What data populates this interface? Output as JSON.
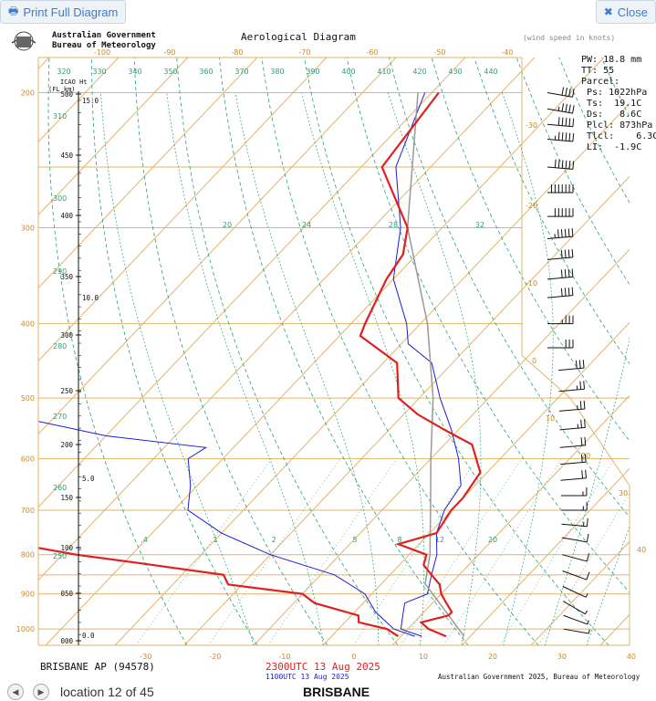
{
  "toolbar": {
    "print_label": "Print Full Diagram",
    "close_label": "Close",
    "print_icon": "printer-icon",
    "close_icon": "close-icon"
  },
  "header": {
    "agency_line1": "Australian Government",
    "agency_line2": "Bureau of Meteorology",
    "title": "Aerological Diagram",
    "wind_note": "(wind speed in knots)"
  },
  "parcel": {
    "pw": "PW: 18.8 mm",
    "tt": "TT:  55",
    "heading": "Parcel:",
    "ps": " Ps: 1022hPa",
    "ts": " Ts:  19.1C",
    "ds": " Ds:   8.6C",
    "plcl": " Plcl: 873hPa",
    "tlcl": " Tlcl:    6.3C",
    "li": " LI:  -1.9C"
  },
  "footer": {
    "station": "BRISBANE AP (94578)",
    "time_primary": "2300UTC 13 Aug 2025",
    "time_secondary": "1100UTC 13 Aug 2025",
    "credit": "Australian Government 2025, Bureau of Meteorology"
  },
  "nav": {
    "location": "location 12 of 45",
    "station": "BRISBANE"
  },
  "chart_data": {
    "type": "line",
    "title": "Aerological Diagram",
    "pressure_labels": [
      200,
      300,
      400,
      500,
      600,
      700,
      800,
      900,
      1000
    ],
    "temp_bottom_labels": [
      -30,
      -20,
      -10,
      0,
      10,
      20,
      30,
      40
    ],
    "temp_top_labels": [
      -100,
      -90,
      -80,
      -70,
      -60,
      -50,
      -40
    ],
    "theta_labels_top": [
      320,
      330,
      340,
      350,
      360,
      370,
      380,
      390,
      400,
      410,
      420,
      430,
      440
    ],
    "theta_labels_left": [
      310,
      300,
      290,
      280,
      270,
      260,
      250
    ],
    "right_temp_labels": [
      -30,
      -20,
      -10,
      0,
      10,
      20,
      30,
      40
    ],
    "mixing_ratio_upper": [
      20,
      24,
      28,
      32
    ],
    "mixing_ratio_lower": [
      0.4,
      1,
      2,
      5,
      8,
      12,
      20
    ],
    "icao_height_title": "ICAO Ht",
    "icao_height_units": "(FL  km)",
    "icao_fl_labels": [
      500,
      450,
      400,
      350,
      300,
      250,
      200,
      150,
      100,
      50,
      0
    ],
    "icao_km_labels": [
      "15.0",
      "10.0",
      "5.0",
      "0.0"
    ],
    "series": [
      {
        "name": "2300UTC 13 Aug 2025",
        "color": "#e0201f",
        "temperature": [
          [
            1022,
            16.5
          ],
          [
            1000,
            13
          ],
          [
            980,
            11
          ],
          [
            960,
            14
          ],
          [
            950,
            14
          ],
          [
            925,
            12
          ],
          [
            900,
            10
          ],
          [
            875,
            8.5
          ],
          [
            850,
            6
          ],
          [
            825,
            3.5
          ],
          [
            800,
            2.5
          ],
          [
            775,
            -3
          ],
          [
            750,
            1
          ],
          [
            700,
            0
          ],
          [
            675,
            0
          ],
          [
            625,
            -1
          ],
          [
            575,
            -6
          ],
          [
            550,
            -12
          ],
          [
            525,
            -18
          ],
          [
            500,
            -23
          ],
          [
            450,
            -28
          ],
          [
            415,
            -37
          ],
          [
            400,
            -38
          ],
          [
            350,
            -41
          ],
          [
            325,
            -42
          ],
          [
            300,
            -45
          ],
          [
            250,
            -57
          ],
          [
            200,
            -59
          ]
        ],
        "dewpoint": [
          [
            1022,
            9.6
          ],
          [
            1000,
            7
          ],
          [
            980,
            2
          ],
          [
            960,
            1
          ],
          [
            925,
            -7
          ],
          [
            900,
            -10
          ],
          [
            875,
            -22
          ],
          [
            850,
            -24
          ],
          [
            820,
            -38
          ],
          [
            800,
            -48
          ],
          [
            770,
            -60
          ],
          [
            750,
            -68
          ],
          [
            700,
            -75
          ],
          [
            650,
            -82
          ],
          [
            600,
            -88
          ],
          [
            575,
            -86
          ],
          [
            550,
            -91
          ],
          [
            500,
            -96
          ],
          [
            475,
            -98
          ],
          [
            450,
            -105
          ],
          [
            420,
            -122
          ],
          [
            400,
            -125
          ],
          [
            350,
            -134
          ],
          [
            325,
            -152
          ],
          [
            300,
            -140
          ],
          [
            200,
            -145
          ]
        ]
      },
      {
        "name": "1100UTC 13 Aug 2025",
        "color": "#1c1cd4",
        "temperature": [
          [
            1022,
            13
          ],
          [
            1000,
            9
          ],
          [
            950,
            7
          ],
          [
            925,
            6
          ],
          [
            900,
            8
          ],
          [
            850,
            6
          ],
          [
            800,
            4
          ],
          [
            750,
            1
          ],
          [
            700,
            -1
          ],
          [
            650,
            -2
          ],
          [
            600,
            -6
          ],
          [
            550,
            -11
          ],
          [
            500,
            -17
          ],
          [
            450,
            -23
          ],
          [
            425,
            -29
          ],
          [
            400,
            -32
          ],
          [
            350,
            -40
          ],
          [
            300,
            -46
          ],
          [
            250,
            -55
          ],
          [
            200,
            -61
          ]
        ],
        "dewpoint": [
          [
            1022,
            12
          ],
          [
            1000,
            8
          ],
          [
            950,
            3
          ],
          [
            900,
            -1
          ],
          [
            850,
            -8
          ],
          [
            800,
            -20
          ],
          [
            750,
            -30
          ],
          [
            700,
            -38
          ],
          [
            650,
            -41
          ],
          [
            600,
            -45
          ],
          [
            580,
            -44
          ],
          [
            560,
            -60
          ],
          [
            520,
            -80
          ],
          [
            480,
            -78
          ],
          [
            460,
            -85
          ],
          [
            440,
            -92
          ],
          [
            400,
            -110
          ],
          [
            350,
            -112
          ],
          [
            300,
            -112
          ],
          [
            250,
            -115
          ],
          [
            200,
            -122
          ]
        ]
      }
    ],
    "parcel_path": {
      "name": "Parcel",
      "color": "#999999",
      "points": [
        [
          1022,
          19.1
        ],
        [
          873,
          6.3
        ],
        [
          800,
          3
        ],
        [
          700,
          -3
        ],
        [
          600,
          -10
        ],
        [
          500,
          -18
        ],
        [
          400,
          -29
        ],
        [
          300,
          -45
        ],
        [
          200,
          -62
        ]
      ]
    },
    "wind_barbs_upper": [
      {
        "p": 200,
        "dir": 280,
        "spd": 40
      },
      {
        "p": 210,
        "dir": 280,
        "spd": 45
      },
      {
        "p": 220,
        "dir": 275,
        "spd": 50
      },
      {
        "p": 230,
        "dir": 275,
        "spd": 55
      },
      {
        "p": 250,
        "dir": 275,
        "spd": 60
      },
      {
        "p": 270,
        "dir": 270,
        "spd": 70
      },
      {
        "p": 290,
        "dir": 270,
        "spd": 60
      },
      {
        "p": 310,
        "dir": 265,
        "spd": 55
      },
      {
        "p": 330,
        "dir": 265,
        "spd": 40
      },
      {
        "p": 350,
        "dir": 265,
        "spd": 40
      },
      {
        "p": 370,
        "dir": 265,
        "spd": 40
      },
      {
        "p": 400,
        "dir": 270,
        "spd": 35
      },
      {
        "p": 430,
        "dir": 270,
        "spd": 30
      },
      {
        "p": 460,
        "dir": 265,
        "spd": 30
      },
      {
        "p": 490,
        "dir": 265,
        "spd": 25
      },
      {
        "p": 520,
        "dir": 265,
        "spd": 25
      },
      {
        "p": 550,
        "dir": 265,
        "spd": 25
      },
      {
        "p": 580,
        "dir": 265,
        "spd": 20
      },
      {
        "p": 610,
        "dir": 265,
        "spd": 20
      },
      {
        "p": 640,
        "dir": 265,
        "spd": 20
      },
      {
        "p": 670,
        "dir": 270,
        "spd": 15
      },
      {
        "p": 700,
        "dir": 270,
        "spd": 15
      },
      {
        "p": 730,
        "dir": 275,
        "spd": 15
      },
      {
        "p": 760,
        "dir": 280,
        "spd": 10
      },
      {
        "p": 800,
        "dir": 285,
        "spd": 10
      },
      {
        "p": 840,
        "dir": 290,
        "spd": 10
      },
      {
        "p": 880,
        "dir": 295,
        "spd": 5
      },
      {
        "p": 920,
        "dir": 300,
        "spd": 5
      },
      {
        "p": 960,
        "dir": 290,
        "spd": 5
      },
      {
        "p": 1000,
        "dir": 280,
        "spd": 5
      }
    ]
  }
}
